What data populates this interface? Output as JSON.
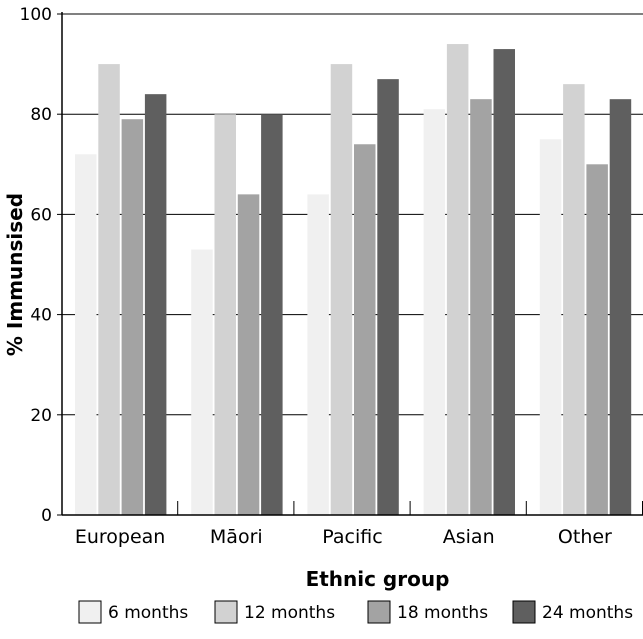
{
  "chart_data": {
    "type": "bar",
    "title": "",
    "xlabel": "Ethnic group",
    "ylabel": "% Immunsised",
    "categories": [
      "European",
      "Māori",
      "Pacific",
      "Asian",
      "Other"
    ],
    "series": [
      {
        "name": "6 months",
        "values": [
          72,
          53,
          64,
          81,
          75
        ],
        "color": "#f0f0f0"
      },
      {
        "name": "12 months",
        "values": [
          90,
          80,
          90,
          94,
          86
        ],
        "color": "#d2d2d2"
      },
      {
        "name": "18 months",
        "values": [
          79,
          64,
          74,
          83,
          70
        ],
        "color": "#a3a3a3"
      },
      {
        "name": "24 months",
        "values": [
          84,
          80,
          87,
          93,
          83
        ],
        "color": "#5f5f5f"
      }
    ],
    "ylim": [
      0,
      100
    ],
    "yticks": [
      "0",
      "20",
      "40",
      "60",
      "80",
      "100"
    ],
    "ytick_values": [
      0,
      20,
      40,
      60,
      80,
      100
    ],
    "grid": true,
    "legend_position": "bottom"
  }
}
